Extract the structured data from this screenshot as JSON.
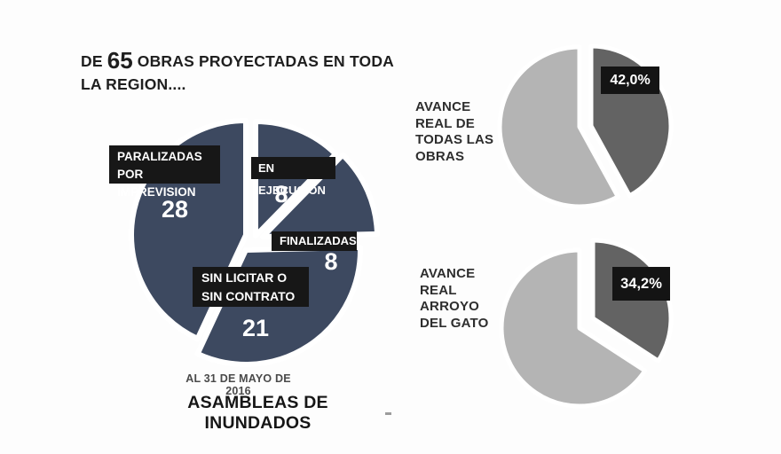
{
  "main": {
    "title_prefix": "DE",
    "title_number": "65",
    "title_suffix": "OBRAS PROYECTADAS EN TODA",
    "title_line2": "LA REGION...."
  },
  "colors": {
    "navy": "#3d4960",
    "pie_gray_dark": "#636363",
    "pie_gray_light": "#b4b4b4",
    "label_box_bg": "#171717",
    "label_text": "#ffffff"
  },
  "chart_data": [
    {
      "id": "obras-por-estado",
      "type": "pie",
      "title": "DE 65 OBRAS PROYECTADAS EN TODA LA REGION....",
      "total": 65,
      "slices": [
        {
          "label": "EN EJECUCION",
          "value": 8
        },
        {
          "label": "FINALIZADAS",
          "value": 8
        },
        {
          "label": "SIN LICITAR O SIN CONTRATO",
          "value": 21,
          "label_lines": [
            "SIN LICITAR O",
            "SIN CONTRATO"
          ]
        },
        {
          "label": "PARALIZADAS POR IMPREVISION",
          "value": 28,
          "label_lines": [
            "PARALIZADAS POR",
            "IMPREVISION"
          ]
        }
      ],
      "footnote": "AL 31 DE MAYO DE 2016",
      "source": "ASAMBLEAS DE INUNDADOS",
      "legend": "off"
    },
    {
      "id": "avance-real-todas-las-obras",
      "type": "pie",
      "label": "AVANCE REAL DE TODAS LAS OBRAS",
      "label_lines": [
        "AVANCE",
        "REAL DE",
        "TODAS LAS",
        "OBRAS"
      ],
      "pct_label": "42,0%",
      "slices": [
        {
          "label": "avance",
          "value": 42.0
        },
        {
          "label": "resto",
          "value": 58.0
        }
      ],
      "legend": "off"
    },
    {
      "id": "avance-real-arroyo-del-gato",
      "type": "pie",
      "label": "AVANCE REAL ARROYO DEL GATO",
      "label_lines": [
        "AVANCE",
        "REAL",
        "ARROYO",
        "DEL GATO"
      ],
      "pct_label": "34,2%",
      "slices": [
        {
          "label": "avance",
          "value": 34.2
        },
        {
          "label": "resto",
          "value": 65.8
        }
      ],
      "legend": "off"
    }
  ]
}
